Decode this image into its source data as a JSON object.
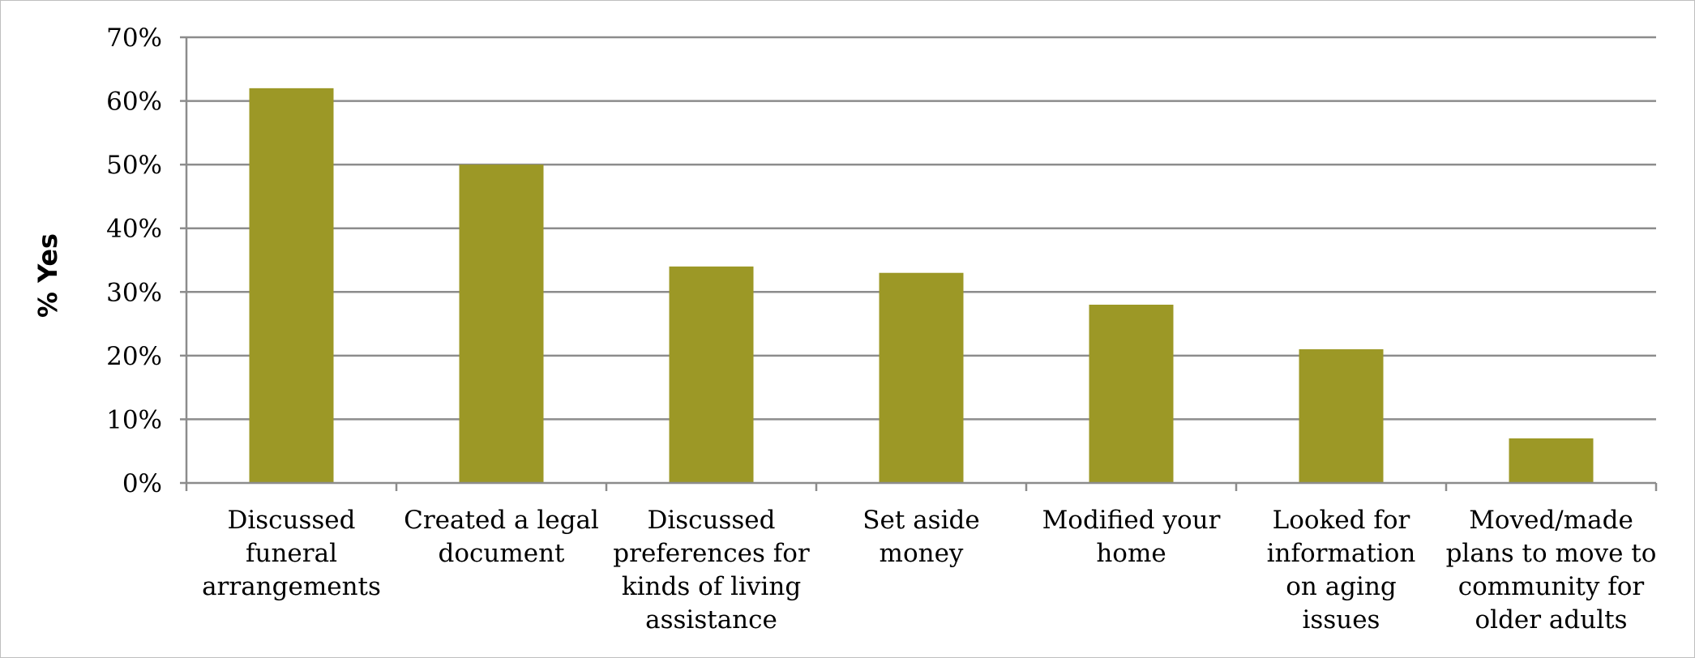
{
  "chart_data": {
    "type": "bar",
    "title": "",
    "xlabel": "",
    "ylabel": "% Yes",
    "ylim": [
      0,
      70
    ],
    "y_tick_step": 10,
    "y_tick_format": "percent",
    "y_ticks": [
      "0%",
      "10%",
      "20%",
      "30%",
      "40%",
      "50%",
      "60%",
      "70%"
    ],
    "grid": true,
    "legend": "none",
    "bar_color": "#9c9826",
    "grid_color": "#8c8c8c",
    "categories": [
      "Discussed funeral arrangements",
      "Created a legal document",
      "Discussed preferences for kinds of living assistance",
      "Set aside money",
      "Modified your home",
      "Looked for information on aging issues",
      "Moved/made plans to move to community for older adults"
    ],
    "category_lines": [
      [
        "Discussed",
        "funeral",
        "arrangements"
      ],
      [
        "Created a legal",
        "document"
      ],
      [
        "Discussed",
        "preferences for",
        "kinds of living",
        "assistance"
      ],
      [
        "Set aside",
        "money"
      ],
      [
        "Modified your",
        "home"
      ],
      [
        "Looked for",
        "information",
        "on aging",
        "issues"
      ],
      [
        "Moved/made",
        "plans to move to",
        "community for",
        "older adults"
      ]
    ],
    "values": [
      62,
      50,
      34,
      33,
      28,
      21,
      7
    ]
  }
}
